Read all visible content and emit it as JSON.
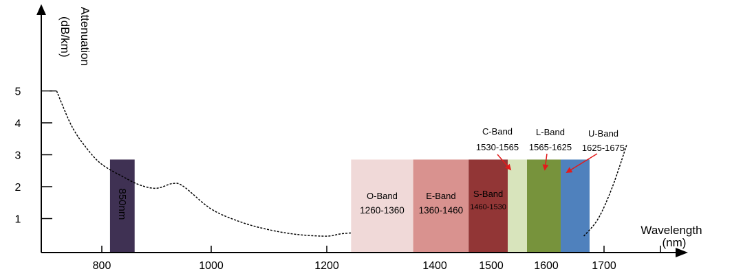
{
  "chart_data": {
    "type": "area",
    "y_axis_title": [
      "Attenuation",
      "(dB/km)"
    ],
    "x_axis_title": [
      "Wavelength",
      "(nm)"
    ],
    "x_ticks": [
      800,
      1000,
      1200,
      1400,
      1500,
      1600,
      1700
    ],
    "y_ticks": [
      1,
      2,
      3,
      4,
      5
    ],
    "curve": [
      [
        710,
        5.0
      ],
      [
        740,
        3.9
      ],
      [
        770,
        3.2
      ],
      [
        800,
        2.7
      ],
      [
        840,
        2.3
      ],
      [
        870,
        2.05
      ],
      [
        900,
        1.95
      ],
      [
        930,
        2.1
      ],
      [
        950,
        2.0
      ],
      [
        1000,
        1.3
      ],
      [
        1050,
        0.9
      ],
      [
        1100,
        0.65
      ],
      [
        1150,
        0.5
      ],
      [
        1200,
        0.45
      ],
      [
        1225,
        0.52
      ],
      [
        1245,
        0.55
      ]
    ],
    "curve_tail": [
      [
        1665,
        0.45
      ],
      [
        1690,
        1.0
      ],
      [
        1715,
        2.0
      ],
      [
        1740,
        3.3
      ]
    ],
    "bands": [
      {
        "label": "850nm",
        "range": "",
        "start": 815,
        "end": 860,
        "color": "#3f3153",
        "vertical": true,
        "text_color": "#ffffff"
      },
      {
        "label": "O-Band",
        "range": "1260-1360",
        "start": 1245,
        "end": 1360,
        "color": "#f0d9d8",
        "text_color": "#222222"
      },
      {
        "label": "E-Band",
        "range": "1360-1460",
        "start": 1360,
        "end": 1460,
        "color": "#d9928f",
        "text_color": "#222222"
      },
      {
        "label": "S-Band",
        "range": "1460-1530",
        "start": 1460,
        "end": 1530,
        "color": "#923636",
        "text_color": "#ffffff"
      },
      {
        "label": "C-Band",
        "range": "1530-1565",
        "start": 1530,
        "end": 1565,
        "color": "#d8e4bc",
        "text_color": "#000000",
        "callout": true
      },
      {
        "label": "L-Band",
        "range": "1565-1625",
        "start": 1565,
        "end": 1625,
        "color": "#77933c",
        "text_color": "#000000",
        "callout": true
      },
      {
        "label": "U-Band",
        "range": "1625-1675",
        "start": 1625,
        "end": 1675,
        "color": "#4f81bd",
        "text_color": "#000000",
        "callout": true
      }
    ],
    "band_top_value": 2.85,
    "grid": false,
    "legend": "none"
  }
}
